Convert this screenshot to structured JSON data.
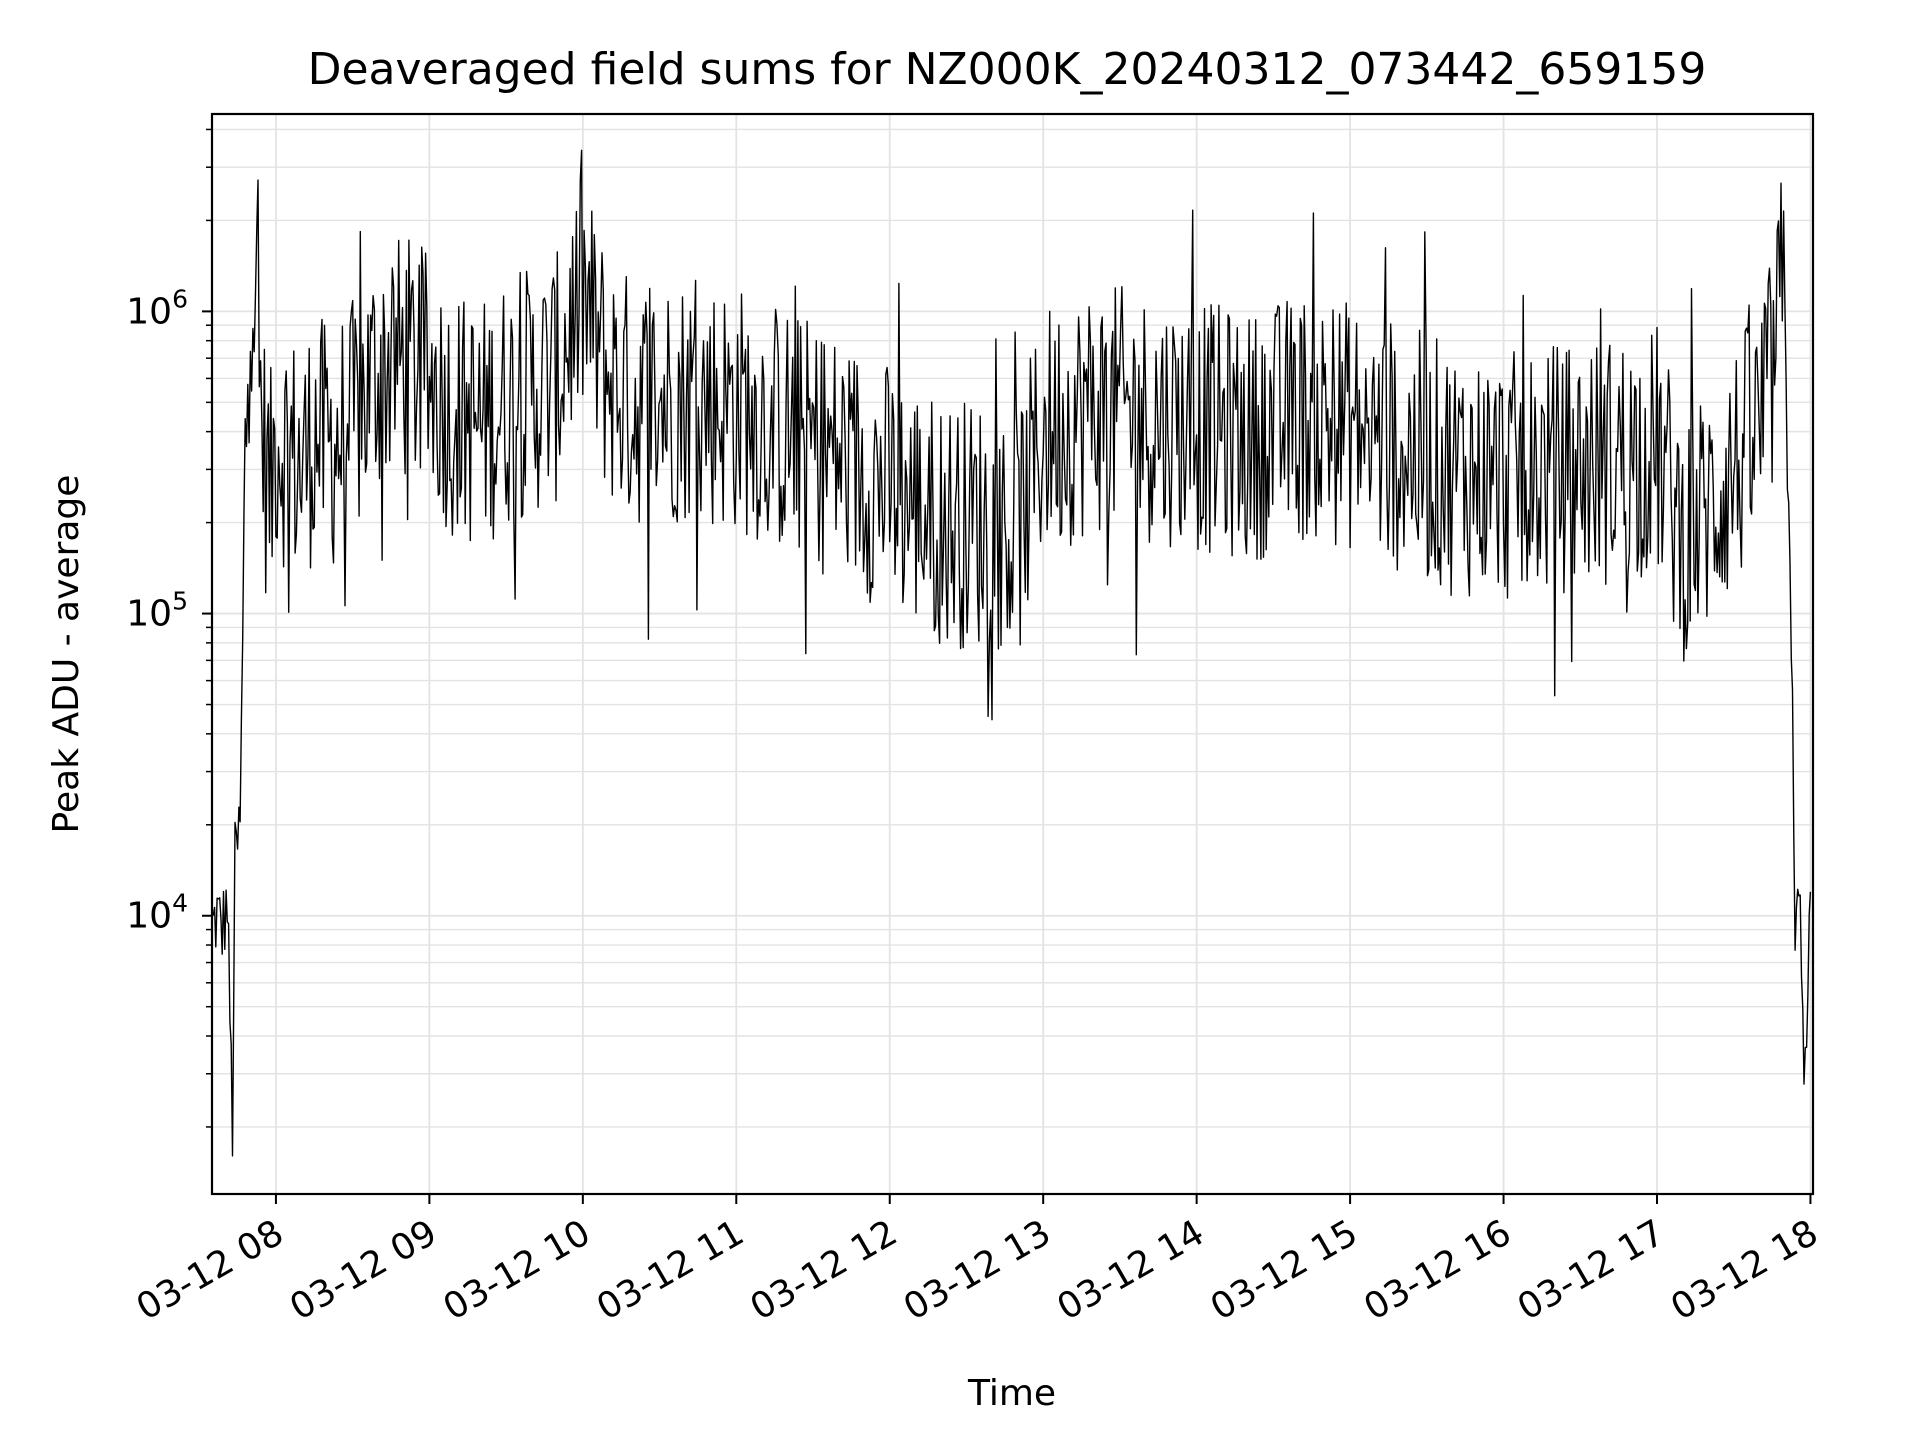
{
  "chart_data": {
    "type": "line",
    "title": "Deaveraged field sums for NZ000K_20240312_073442_659159",
    "xlabel": "Time",
    "ylabel": "Peak ADU - average",
    "yscale": "log",
    "grid": true,
    "x_range": [
      "2024-03-12 07:35",
      "2024-03-12 18:01"
    ],
    "y_range": [
      1200,
      4500000
    ],
    "x_ticks": [
      {
        "t": "2024-03-12 08:00",
        "label": "03-12 08"
      },
      {
        "t": "2024-03-12 09:00",
        "label": "03-12 09"
      },
      {
        "t": "2024-03-12 10:00",
        "label": "03-12 10"
      },
      {
        "t": "2024-03-12 11:00",
        "label": "03-12 11"
      },
      {
        "t": "2024-03-12 12:00",
        "label": "03-12 12"
      },
      {
        "t": "2024-03-12 13:00",
        "label": "03-12 13"
      },
      {
        "t": "2024-03-12 14:00",
        "label": "03-12 14"
      },
      {
        "t": "2024-03-12 15:00",
        "label": "03-12 15"
      },
      {
        "t": "2024-03-12 16:00",
        "label": "03-12 16"
      },
      {
        "t": "2024-03-12 17:00",
        "label": "03-12 17"
      },
      {
        "t": "2024-03-12 18:00",
        "label": "03-12 18"
      }
    ],
    "y_ticks": [
      {
        "value": 10000,
        "base": "10",
        "exp": "4"
      },
      {
        "value": 100000,
        "base": "10",
        "exp": "5"
      },
      {
        "value": 1000000,
        "base": "10",
        "exp": "6"
      }
    ],
    "line_color": "#000000",
    "series": [
      {
        "x": [
          "2024-03-12 07:35",
          "2024-03-12 07:37",
          "2024-03-12 07:39",
          "2024-03-12 07:41",
          "2024-03-12 07:43",
          "2024-03-12 07:44",
          "2024-03-12 07:46",
          "2024-03-12 07:48",
          "2024-03-12 07:50",
          "2024-03-12 07:52",
          "2024-03-12 07:54",
          "2024-03-12 07:56",
          "2024-03-12 07:58",
          "2024-03-12 08:00",
          "2024-03-12 08:05",
          "2024-03-12 08:10",
          "2024-03-12 08:15",
          "2024-03-12 08:20",
          "2024-03-12 08:25",
          "2024-03-12 08:30",
          "2024-03-12 08:40",
          "2024-03-12 08:50",
          "2024-03-12 09:00",
          "2024-03-12 09:10",
          "2024-03-12 09:20",
          "2024-03-12 09:30",
          "2024-03-12 09:40",
          "2024-03-12 09:50",
          "2024-03-12 09:55",
          "2024-03-12 10:00",
          "2024-03-12 10:10",
          "2024-03-12 10:20",
          "2024-03-12 10:40",
          "2024-03-12 11:00",
          "2024-03-12 11:20",
          "2024-03-12 11:40",
          "2024-03-12 12:00",
          "2024-03-12 12:20",
          "2024-03-12 12:40",
          "2024-03-12 12:50",
          "2024-03-12 13:00",
          "2024-03-12 13:20",
          "2024-03-12 13:40",
          "2024-03-12 14:00",
          "2024-03-12 14:20",
          "2024-03-12 14:40",
          "2024-03-12 15:00",
          "2024-03-12 15:20",
          "2024-03-12 15:40",
          "2024-03-12 16:00",
          "2024-03-12 16:20",
          "2024-03-12 16:40",
          "2024-03-12 17:00",
          "2024-03-12 17:10",
          "2024-03-12 17:20",
          "2024-03-12 17:30",
          "2024-03-12 17:40",
          "2024-03-12 17:45",
          "2024-03-12 17:48",
          "2024-03-12 17:50",
          "2024-03-12 17:52",
          "2024-03-12 17:54",
          "2024-03-12 17:56",
          "2024-03-12 17:58",
          "2024-03-12 18:00"
        ],
        "y": [
          9000,
          10000,
          9000,
          11000,
          2000,
          15000,
          20000,
          300000,
          1500000,
          1200000,
          500000,
          300000,
          250000,
          400000,
          350000,
          300000,
          400000,
          350000,
          380000,
          420000,
          650000,
          700000,
          600000,
          450000,
          420000,
          500000,
          550000,
          600000,
          900000,
          1100000,
          600000,
          500000,
          520000,
          480000,
          400000,
          330000,
          260000,
          200000,
          200000,
          180000,
          400000,
          480000,
          450000,
          420000,
          380000,
          450000,
          420000,
          350000,
          300000,
          280000,
          300000,
          320000,
          350000,
          180000,
          220000,
          300000,
          400000,
          600000,
          1000000,
          1300000,
          250000,
          10000,
          9000,
          2500,
          12000
        ]
      }
    ]
  }
}
